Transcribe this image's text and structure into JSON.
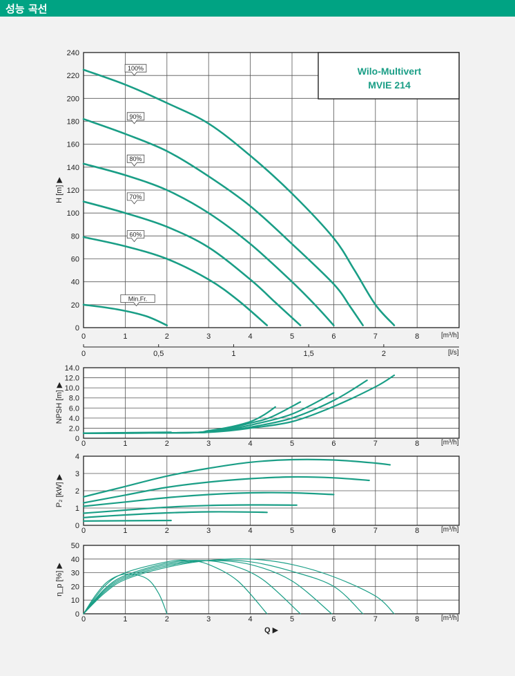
{
  "header": {
    "title": "성능 곡선"
  },
  "colors": {
    "accent": "#00a383",
    "curve": "#1a9e86",
    "grid": "#555555"
  },
  "chart_data": [
    {
      "id": "head",
      "type": "line",
      "title": "Wilo-Multivert",
      "subtitle": "MVIE 214",
      "ylabel": "H [m] ▶",
      "xunit": "[m³/h]",
      "x2unit": "[l/s]",
      "xlim": [
        0,
        9
      ],
      "ylim": [
        0,
        240
      ],
      "xticks": [
        "0",
        "1",
        "2",
        "3",
        "4",
        "5",
        "6",
        "7",
        "8"
      ],
      "yticks": [
        "0",
        "20",
        "40",
        "60",
        "80",
        "100",
        "120",
        "140",
        "160",
        "180",
        "200",
        "220",
        "240"
      ],
      "x2ticks": [
        {
          "v": 0,
          "label": "0"
        },
        {
          "v": 0.5,
          "label": "0,5"
        },
        {
          "v": 1,
          "label": "1"
        },
        {
          "v": 1.5,
          "label": "1,5"
        },
        {
          "v": 2,
          "label": "2"
        }
      ],
      "grid": true,
      "series": [
        {
          "name": "100%",
          "label_at": [
            1.25,
            220
          ],
          "points": [
            [
              0,
              225
            ],
            [
              1,
              212
            ],
            [
              2,
              196
            ],
            [
              3,
              178
            ],
            [
              4,
              150
            ],
            [
              5,
              117
            ],
            [
              6,
              78
            ],
            [
              6.5,
              50
            ],
            [
              7,
              20
            ],
            [
              7.45,
              2
            ]
          ]
        },
        {
          "name": "90%",
          "label_at": [
            1.25,
            178
          ],
          "points": [
            [
              0,
              182
            ],
            [
              1,
              169
            ],
            [
              2,
              154
            ],
            [
              3,
              132
            ],
            [
              4,
              106
            ],
            [
              5,
              73
            ],
            [
              6,
              38
            ],
            [
              6.4,
              18
            ],
            [
              6.7,
              2
            ]
          ]
        },
        {
          "name": "80%",
          "label_at": [
            1.25,
            141
          ],
          "points": [
            [
              0,
              143
            ],
            [
              1,
              133
            ],
            [
              2,
              120
            ],
            [
              3,
              100
            ],
            [
              4,
              73
            ],
            [
              5,
              40
            ],
            [
              5.6,
              18
            ],
            [
              6,
              2
            ]
          ]
        },
        {
          "name": "70%",
          "label_at": [
            1.25,
            108
          ],
          "points": [
            [
              0,
              110
            ],
            [
              1,
              100
            ],
            [
              2,
              88
            ],
            [
              3,
              70
            ],
            [
              4,
              42
            ],
            [
              4.6,
              22
            ],
            [
              5.2,
              2
            ]
          ]
        },
        {
          "name": "60%",
          "label_at": [
            1.25,
            75
          ],
          "points": [
            [
              0,
              79
            ],
            [
              1,
              71
            ],
            [
              2,
              60
            ],
            [
              3,
              42
            ],
            [
              3.7,
              24
            ],
            [
              4.4,
              2
            ]
          ]
        },
        {
          "name": "Min.Fr.",
          "label_at": [
            1.3,
            19
          ],
          "points": [
            [
              0,
              20
            ],
            [
              0.8,
              16
            ],
            [
              1.5,
              10
            ],
            [
              2,
              2
            ]
          ]
        }
      ]
    },
    {
      "id": "npsh",
      "type": "line",
      "ylabel": "NPSH [m] ▶",
      "xunit": "[m³/h]",
      "xlim": [
        0,
        9
      ],
      "ylim": [
        0,
        14
      ],
      "xticks": [
        "0",
        "1",
        "2",
        "3",
        "4",
        "5",
        "6",
        "7",
        "8"
      ],
      "yticks": [
        "0",
        "2.0",
        "4.0",
        "6.0",
        "8.0",
        "10.0",
        "12.0",
        "14.0"
      ],
      "grid": true,
      "series": [
        {
          "points": [
            [
              0,
              1.0
            ],
            [
              2.1,
              1.2
            ]
          ]
        },
        {
          "points": [
            [
              0,
              1.0
            ],
            [
              2.5,
              1.1
            ],
            [
              3,
              1.5
            ],
            [
              3.5,
              2.2
            ],
            [
              4,
              3.3
            ],
            [
              4.3,
              4.5
            ],
            [
              4.6,
              6.2
            ]
          ]
        },
        {
          "points": [
            [
              0,
              1.0
            ],
            [
              2.5,
              1.1
            ],
            [
              3,
              1.4
            ],
            [
              3.5,
              2.0
            ],
            [
              4,
              3.0
            ],
            [
              4.5,
              4.2
            ],
            [
              5.2,
              7.2
            ]
          ]
        },
        {
          "points": [
            [
              0,
              1.0
            ],
            [
              2.5,
              1.1
            ],
            [
              3,
              1.3
            ],
            [
              3.5,
              1.8
            ],
            [
              4,
              2.6
            ],
            [
              5,
              4.8
            ],
            [
              6,
              9.0
            ]
          ]
        },
        {
          "points": [
            [
              0,
              1.0
            ],
            [
              2.5,
              1.1
            ],
            [
              3,
              1.2
            ],
            [
              3.5,
              1.6
            ],
            [
              4,
              2.2
            ],
            [
              5,
              4.0
            ],
            [
              6,
              7.5
            ],
            [
              6.8,
              11.5
            ]
          ]
        },
        {
          "points": [
            [
              0,
              1.0
            ],
            [
              2.5,
              1.1
            ],
            [
              3,
              1.2
            ],
            [
              3.5,
              1.5
            ],
            [
              4,
              2.0
            ],
            [
              5,
              3.3
            ],
            [
              6,
              6.3
            ],
            [
              7,
              10.2
            ],
            [
              7.45,
              12.5
            ]
          ]
        }
      ]
    },
    {
      "id": "power",
      "type": "line",
      "ylabel": "P₂ [kW] ▶",
      "xunit": "[m³/h]",
      "xlim": [
        0,
        9
      ],
      "ylim": [
        0,
        4
      ],
      "xticks": [
        "0",
        "1",
        "2",
        "3",
        "4",
        "5",
        "6",
        "7",
        "8"
      ],
      "yticks": [
        "0",
        "1",
        "2",
        "3",
        "4"
      ],
      "grid": true,
      "series": [
        {
          "points": [
            [
              0,
              0.25
            ],
            [
              2.1,
              0.28
            ]
          ]
        },
        {
          "points": [
            [
              0,
              0.45
            ],
            [
              1,
              0.6
            ],
            [
              2,
              0.72
            ],
            [
              3,
              0.78
            ],
            [
              4,
              0.77
            ],
            [
              4.4,
              0.75
            ]
          ]
        },
        {
          "points": [
            [
              0,
              0.7
            ],
            [
              1,
              0.88
            ],
            [
              2,
              1.05
            ],
            [
              3,
              1.15
            ],
            [
              4,
              1.18
            ],
            [
              5,
              1.17
            ],
            [
              5.1,
              1.17
            ]
          ]
        },
        {
          "points": [
            [
              0,
              1.1
            ],
            [
              1,
              1.35
            ],
            [
              2,
              1.6
            ],
            [
              3,
              1.78
            ],
            [
              4,
              1.88
            ],
            [
              5,
              1.88
            ],
            [
              6,
              1.78
            ]
          ]
        },
        {
          "points": [
            [
              0,
              1.3
            ],
            [
              1,
              1.75
            ],
            [
              2,
              2.2
            ],
            [
              3,
              2.5
            ],
            [
              4,
              2.7
            ],
            [
              5,
              2.8
            ],
            [
              6,
              2.75
            ],
            [
              6.85,
              2.6
            ]
          ]
        },
        {
          "points": [
            [
              0,
              1.65
            ],
            [
              1,
              2.25
            ],
            [
              2,
              2.85
            ],
            [
              3,
              3.3
            ],
            [
              4,
              3.65
            ],
            [
              5,
              3.8
            ],
            [
              6,
              3.78
            ],
            [
              7,
              3.6
            ],
            [
              7.35,
              3.5
            ]
          ]
        }
      ]
    },
    {
      "id": "efficiency",
      "type": "line",
      "ylabel": "η_p [%] ▶",
      "xlabel": "Q ▶",
      "xunit": "[m³/h]",
      "xlim": [
        0,
        9
      ],
      "ylim": [
        0,
        50
      ],
      "xticks": [
        "0",
        "1",
        "2",
        "3",
        "4",
        "5",
        "6",
        "7",
        "8"
      ],
      "yticks": [
        "0",
        "10",
        "20",
        "30",
        "40",
        "50"
      ],
      "grid": true,
      "series": [
        {
          "points": [
            [
              0,
              0
            ],
            [
              0.3,
              14
            ],
            [
              0.6,
              24
            ],
            [
              1,
              29
            ],
            [
              1.5,
              26
            ],
            [
              1.8,
              15
            ],
            [
              2,
              0
            ]
          ]
        },
        {
          "points": [
            [
              0,
              0
            ],
            [
              0.5,
              20
            ],
            [
              1,
              30
            ],
            [
              2,
              38
            ],
            [
              2.5,
              39
            ],
            [
              3,
              36
            ],
            [
              3.7,
              24
            ],
            [
              4.4,
              0
            ]
          ]
        },
        {
          "points": [
            [
              0,
              0
            ],
            [
              0.5,
              18
            ],
            [
              1,
              28
            ],
            [
              2,
              37
            ],
            [
              2.8,
              39
            ],
            [
              3.5,
              36
            ],
            [
              4.3,
              25
            ],
            [
              5.2,
              0
            ]
          ]
        },
        {
          "points": [
            [
              0,
              0
            ],
            [
              0.5,
              17
            ],
            [
              1,
              27
            ],
            [
              2,
              36
            ],
            [
              3,
              39
            ],
            [
              4,
              36
            ],
            [
              5,
              24
            ],
            [
              5.95,
              0
            ]
          ]
        },
        {
          "points": [
            [
              0,
              0
            ],
            [
              0.5,
              16
            ],
            [
              1,
              26
            ],
            [
              2,
              35
            ],
            [
              3,
              39
            ],
            [
              4,
              38
            ],
            [
              5,
              31
            ],
            [
              6,
              20
            ],
            [
              6.7,
              0
            ]
          ]
        },
        {
          "points": [
            [
              0,
              0
            ],
            [
              0.5,
              15
            ],
            [
              1,
              25
            ],
            [
              2,
              34
            ],
            [
              3,
              39
            ],
            [
              4,
              40
            ],
            [
              5,
              36
            ],
            [
              6,
              27
            ],
            [
              7,
              13
            ],
            [
              7.45,
              0
            ]
          ]
        }
      ]
    }
  ]
}
